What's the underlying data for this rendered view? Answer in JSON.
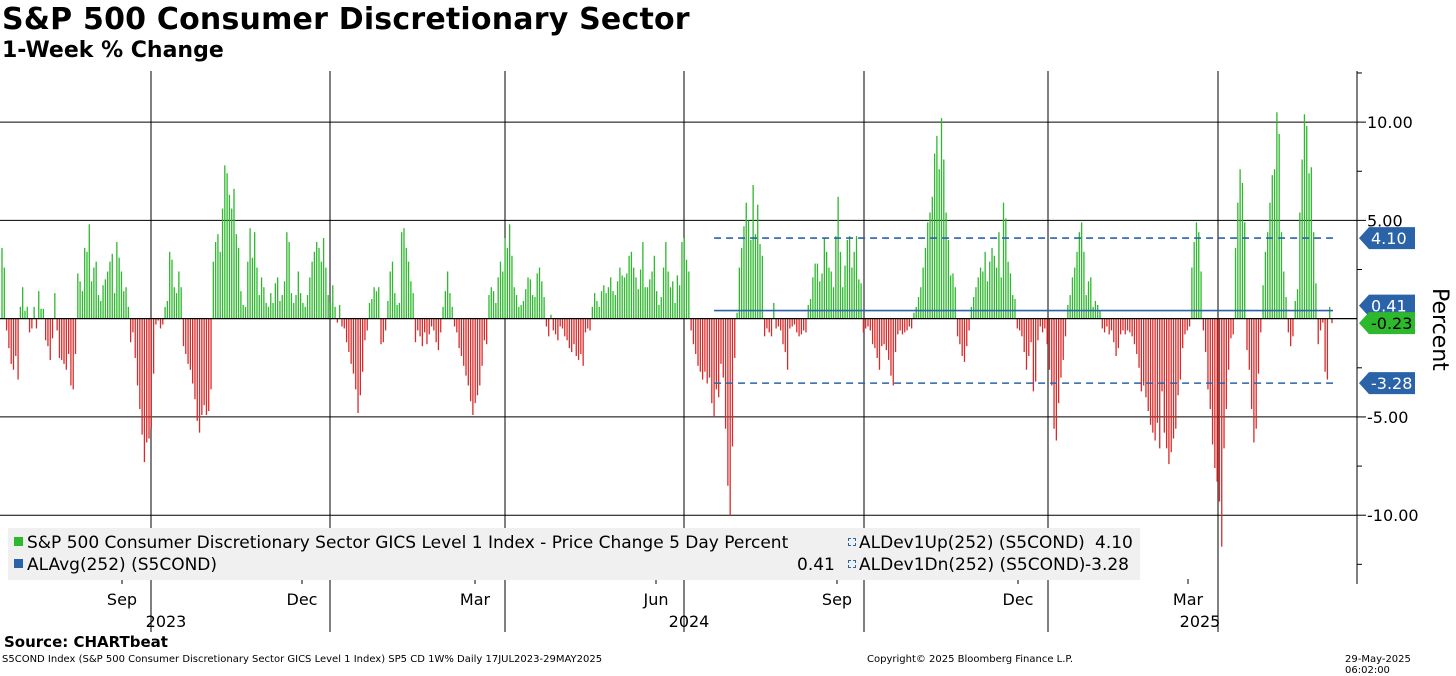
{
  "header": {
    "title": "S&P 500 Consumer Discretionary Sector",
    "subtitle": "1-Week % Change"
  },
  "chart_data": {
    "type": "bar",
    "title": "S&P 500 Consumer Discretionary Sector",
    "subtitle": "1-Week % Change",
    "ylabel": "Percent",
    "ylim": [
      -13.5,
      12.6
    ],
    "y_ticks": [
      10,
      5,
      -5,
      -10
    ],
    "y_tick_labels": [
      "10.00",
      "5.00",
      "-5.00",
      "-10.00"
    ],
    "months": [
      "Sep",
      "Dec",
      "Mar",
      "Jun",
      "Sep",
      "Dec",
      "Mar"
    ],
    "years": [
      "2023",
      "2024",
      "2025"
    ],
    "series": [
      {
        "name": "S&P 500 Consumer Discretionary Sector GICS Level 1 Index - Price Change 5 Day Percent",
        "color_up": "#2db82d",
        "color_down": "#d92a2a",
        "values": [
          3.6,
          2.6,
          -0.6,
          -1.5,
          -2.3,
          -2.6,
          -1.9,
          -3.1,
          0.6,
          1.6,
          0.4,
          0.6,
          -0.7,
          -0.5,
          0.6,
          -0.5,
          1.4,
          0.5,
          0.5,
          -1.1,
          -1.4,
          -2.1,
          -1.0,
          1.3,
          -0.6,
          -2.0,
          -2.1,
          -2.3,
          -2.6,
          -1.8,
          -3.4,
          -3.6,
          -1.8,
          2.3,
          1.9,
          1.4,
          3.6,
          3.4,
          4.8,
          1.9,
          2.6,
          2.9,
          1.2,
          0.9,
          1.7,
          2.0,
          2.4,
          2.9,
          3.3,
          1.3,
          3.9,
          3.1,
          2.4,
          1.4,
          1.6,
          0.6,
          -1.2,
          -0.7,
          -2.0,
          -3.4,
          -4.6,
          -5.9,
          -7.3,
          -6.3,
          -6.1,
          -5.6,
          -2.8,
          -0.3,
          -0.1,
          -0.5,
          -0.3,
          0.6,
          0.9,
          3.4,
          3.0,
          1.6,
          1.3,
          2.4,
          1.6,
          -1.4,
          -1.8,
          -2.3,
          -2.6,
          -3.3,
          -4.1,
          -5.2,
          -5.8,
          -4.9,
          -4.4,
          -4.9,
          -4.7,
          -3.6,
          2.9,
          3.9,
          4.3,
          3.4,
          5.6,
          7.8,
          7.4,
          6.3,
          5.6,
          6.6,
          4.3,
          3.6,
          1.4,
          0.7,
          0.6,
          2.9,
          4.6,
          3.1,
          4.4,
          2.6,
          1.2,
          2.1,
          1.6,
          0.8,
          0.6,
          1.3,
          0.8,
          1.8,
          2.1,
          0.9,
          1.2,
          1.9,
          4.4,
          3.9,
          1.3,
          0.8,
          1.2,
          2.4,
          1.3,
          0.8,
          0.6,
          1.2,
          2.1,
          2.9,
          3.4,
          3.9,
          3.6,
          2.9,
          4.1,
          2.6,
          1.2,
          0.8,
          1.7,
          0.6,
          -0.2,
          0.7,
          -0.4,
          -0.5,
          -1.2,
          -1.7,
          -2.3,
          -2.8,
          -3.6,
          -4.8,
          -3.9,
          -2.7,
          -1.1,
          -0.6,
          0.8,
          1.0,
          1.6,
          1.4,
          1.6,
          -1.3,
          -1.2,
          -0.6,
          0.9,
          2.4,
          2.9,
          1.3,
          0.7,
          0.8,
          4.4,
          4.6,
          3.6,
          2.9,
          1.9,
          1.3,
          -1.2,
          -0.6,
          -0.9,
          -1.4,
          -0.7,
          -1.3,
          -0.8,
          -0.4,
          -0.6,
          -1.2,
          -1.6,
          -0.7,
          0.6,
          1.4,
          2.4,
          1.3,
          0.6,
          -0.4,
          -0.7,
          -1.5,
          -1.9,
          -2.4,
          -2.9,
          -3.4,
          -4.2,
          -4.9,
          -4.3,
          -3.9,
          -3.4,
          -2.4,
          -1.1,
          -1.3,
          1.2,
          1.6,
          1.4,
          0.8,
          2.1,
          2.9,
          2.4,
          4.1,
          3.6,
          4.8,
          3.2,
          1.6,
          1.2,
          0.6,
          0.7,
          0.9,
          1.5,
          2.1,
          2.0,
          1.2,
          1.1,
          2.3,
          2.6,
          1.9,
          1.1,
          -0.4,
          -0.9,
          0.2,
          -0.6,
          -0.8,
          -1.1,
          -0.4,
          -0.5,
          -0.9,
          -1.1,
          -1.5,
          -1.7,
          -1.3,
          -1.9,
          -2.1,
          -1.8,
          -2.4,
          -0.7,
          -0.5,
          -0.6,
          0.6,
          1.3,
          0.9,
          0.6,
          1.4,
          1.7,
          1.3,
          1.6,
          2.1,
          1.4,
          1.2,
          1.9,
          2.6,
          2.2,
          2.1,
          2.3,
          3.2,
          3.4,
          2.6,
          2.1,
          1.5,
          2.5,
          3.9,
          1.6,
          1.6,
          2.0,
          2.4,
          3.2,
          1.4,
          0.7,
          1.1,
          2.6,
          3.9,
          2.4,
          1.6,
          1.9,
          0.8,
          2.2,
          1.7,
          3.9,
          4.1,
          3.0,
          2.4,
          -0.6,
          -1.3,
          -1.8,
          -2.4,
          -2.7,
          -3.1,
          -2.7,
          -3.3,
          -3.0,
          -4.3,
          -5.0,
          -3.6,
          -4.0,
          -2.3,
          -3.0,
          -5.6,
          -8.5,
          -10.0,
          -6.5,
          -2.0,
          0.3,
          2.6,
          3.6,
          4.7,
          5.9,
          5.0,
          4.0,
          6.8,
          4.3,
          5.8,
          3.8,
          3.2,
          -0.9,
          -0.5,
          -0.7,
          -0.9,
          0.8,
          -0.5,
          -0.4,
          -0.6,
          -1.3,
          -1.7,
          -2.6,
          -0.5,
          -0.4,
          -0.3,
          -0.7,
          -0.9,
          -0.8,
          -0.6,
          -0.7,
          0.7,
          1.0,
          2.1,
          2.8,
          2.8,
          1.9,
          2.3,
          4.1,
          3.4,
          2.6,
          2.4,
          1.6,
          4.2,
          6.2,
          3.4,
          1.6,
          2.7,
          4.0,
          4.2,
          2.6,
          3.4,
          4.2,
          2.0,
          1.8,
          -0.7,
          -0.5,
          -0.4,
          -0.6,
          -1.3,
          -1.5,
          -2.0,
          -2.6,
          -1.4,
          -1.3,
          -1.6,
          -2.1,
          -2.9,
          -3.4,
          -1.7,
          -0.8,
          -0.6,
          -0.8,
          -0.7,
          -0.6,
          -0.4,
          -0.5,
          0.3,
          0.6,
          1.1,
          1.6,
          2.6,
          3.6,
          4.9,
          5.4,
          6.2,
          8.4,
          9.3,
          7.6,
          10.2,
          8.1,
          5.4,
          4.0,
          2.2,
          2.3,
          1.6,
          -0.9,
          -1.3,
          -1.9,
          -2.2,
          -1.4,
          -0.6,
          0.6,
          1.1,
          1.6,
          2.1,
          2.6,
          2.4,
          3.4,
          1.9,
          2.9,
          3.6,
          3.2,
          2.6,
          4.4,
          2.1,
          5.9,
          5.1,
          2.9,
          2.3,
          1.2,
          1.0,
          -0.5,
          -0.6,
          -0.9,
          -1.7,
          -2.6,
          -1.9,
          -1.2,
          -3.7,
          -3.2,
          -1.1,
          -0.4,
          -0.7,
          -0.5,
          -1.3,
          -2.6,
          -3.4,
          -5.6,
          -6.2,
          -4.3,
          -3.0,
          -2.1,
          -0.9,
          0.7,
          1.2,
          2.1,
          2.6,
          3.4,
          4.4,
          4.9,
          3.4,
          1.2,
          1.9,
          2.1,
          0.6,
          0.9,
          0.7,
          0.4,
          -0.5,
          -0.7,
          -0.4,
          -0.8,
          -0.6,
          -1.2,
          -1.9,
          -1.5,
          -0.8,
          -0.6,
          -0.8,
          -0.6,
          -0.7,
          -0.9,
          -1.3,
          -1.8,
          -2.5,
          -3.7,
          -3.4,
          -4.0,
          -4.7,
          -5.4,
          -5.8,
          -6.2,
          -5.3,
          -6.6,
          -3.7,
          -5.8,
          -6.6,
          -7.4,
          -6.8,
          -6.1,
          -5.6,
          -3.9,
          -3.1,
          -1.5,
          -0.8,
          -0.6,
          -0.4,
          2.6,
          3.9,
          4.9,
          4.4,
          2.4,
          -0.6,
          -1.7,
          -3.6,
          -4.6,
          -6.4,
          -7.6,
          -8.3,
          -9.3,
          -11.6,
          -6.6,
          -4.6,
          -2.6,
          -1.0,
          -0.8,
          3.6,
          5.9,
          7.6,
          6.9,
          4.9,
          -1.6,
          -2.6,
          -4.6,
          -6.3,
          -5.6,
          -2.8,
          -0.7,
          1.7,
          3.4,
          4.4,
          5.9,
          7.3,
          7.6,
          10.5,
          9.4,
          4.4,
          2.4,
          1.1,
          -0.7,
          -1.4,
          -0.9,
          0.9,
          1.5,
          5.4,
          8.1,
          10.4,
          9.8,
          7.4,
          7.7,
          4.4,
          1.8,
          -1.3,
          -0.6,
          -0.2,
          -2.7,
          -3.1,
          0.6,
          -0.23
        ]
      }
    ],
    "reference_lines": [
      {
        "name": "ALDev1Up(252) (S5COND)",
        "value": 4.1,
        "label": "4.10",
        "style": "dashed"
      },
      {
        "name": "ALAvg(252) (S5COND)",
        "value": 0.41,
        "label": "0.41",
        "style": "solid"
      },
      {
        "name": "ALDev1Dn(252) (S5COND)",
        "value": -3.28,
        "label": "-3.28",
        "style": "dashed"
      }
    ],
    "last_value": {
      "value": -0.23,
      "label": "-0.23"
    }
  },
  "legend": {
    "series_label": "S&P 500 Consumer Discretionary Sector GICS Level 1 Index - Price Change 5 Day Percent",
    "avg_label": "ALAvg(252) (S5COND)",
    "avg_value": "0.41",
    "up_label": "ALDev1Up(252) (S5COND)",
    "up_value": "4.10",
    "dn_label": "ALDev1Dn(252) (S5COND)",
    "dn_value": "-3.28"
  },
  "footer": {
    "source": "Source: CHARTbeat",
    "index_info": "S5COND Index (S&P 500 Consumer Discretionary Sector GICS Level 1 Index) SP5 CD 1W% Daily 17JUL2023-29MAY2025",
    "copyright": "Copyright© 2025 Bloomberg Finance L.P.",
    "timestamp": "29-May-2025 06:02:00"
  },
  "colors": {
    "up": "#2db82d",
    "down": "#d92a2a",
    "reference": "#2b63a8",
    "badge_blue": "#2b63a8",
    "badge_green": "#2db82d"
  }
}
